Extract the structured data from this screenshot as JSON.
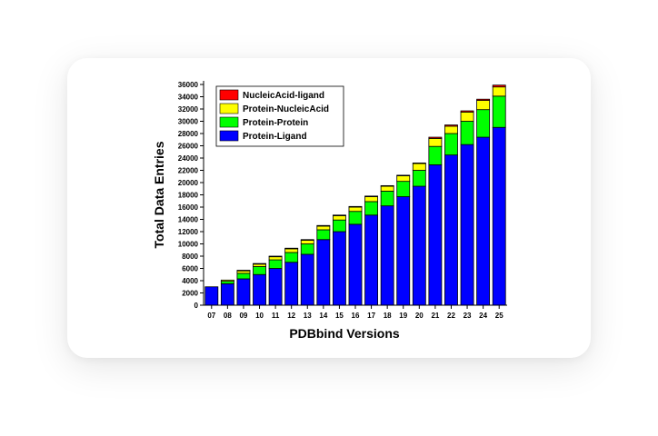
{
  "chart_data": {
    "type": "bar",
    "stacked": true,
    "title": "",
    "xlabel": "PDBbind Versions",
    "ylabel": "Total Data Entries",
    "categories": [
      "07",
      "08",
      "09",
      "10",
      "11",
      "12",
      "13",
      "14",
      "15",
      "16",
      "17",
      "18",
      "19",
      "20",
      "21",
      "22",
      "23",
      "24",
      "25"
    ],
    "ylim": [
      0,
      36000
    ],
    "yticks": [
      0,
      2000,
      4000,
      6000,
      8000,
      10000,
      12000,
      14000,
      16000,
      18000,
      20000,
      22000,
      24000,
      26000,
      28000,
      30000,
      32000,
      34000,
      36000
    ],
    "legend_position": "top-left",
    "grid": false,
    "series": [
      {
        "name": "Protein-Ligand",
        "color": "#0000ff",
        "values": [
          3000,
          3500,
          4300,
          5000,
          6000,
          7000,
          8300,
          10700,
          12000,
          13200,
          14700,
          16200,
          17700,
          19400,
          22900,
          24500,
          26200,
          27400,
          29000
        ]
      },
      {
        "name": "Protein-Protein",
        "color": "#00ff00",
        "values": [
          0,
          400,
          900,
          1300,
          1400,
          1600,
          1700,
          1600,
          1900,
          2100,
          2200,
          2400,
          2500,
          2600,
          3000,
          3500,
          3800,
          4500,
          5100
        ]
      },
      {
        "name": "Protein-NucleicAcid",
        "color": "#ffff00",
        "values": [
          0,
          200,
          400,
          400,
          500,
          600,
          600,
          600,
          700,
          700,
          800,
          800,
          900,
          1100,
          1300,
          1200,
          1500,
          1500,
          1500
        ]
      },
      {
        "name": "NucleicAcid-ligand",
        "color": "#ff0000",
        "values": [
          0,
          0,
          100,
          100,
          100,
          100,
          100,
          100,
          100,
          100,
          100,
          100,
          100,
          100,
          200,
          200,
          200,
          200,
          300
        ]
      }
    ],
    "legend_order": [
      "NucleicAcid-ligand",
      "Protein-NucleicAcid",
      "Protein-Protein",
      "Protein-Ligand"
    ]
  }
}
